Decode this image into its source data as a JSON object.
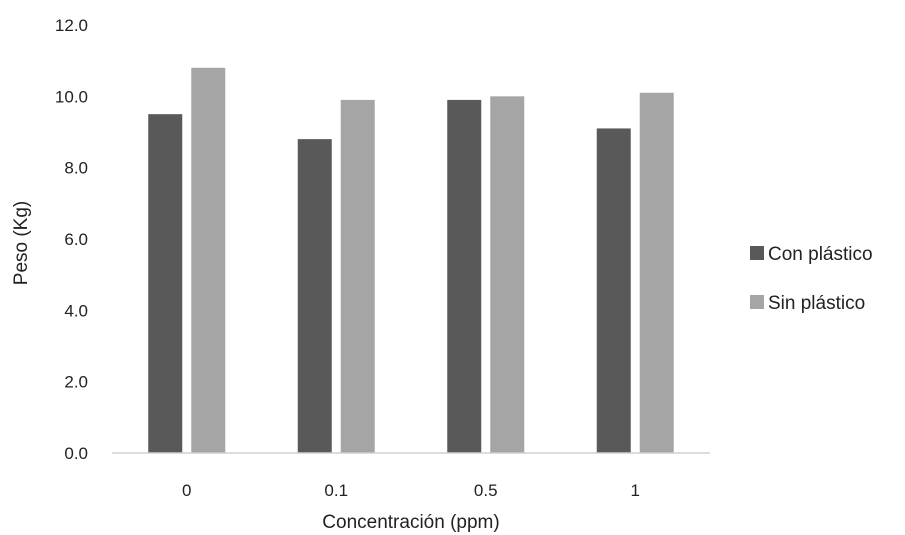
{
  "chart_data": {
    "type": "bar",
    "title": "",
    "xlabel": "Concentración (ppm)",
    "ylabel": "Peso (Kg)",
    "categories": [
      "0",
      "0.1",
      "0.5",
      "1"
    ],
    "series": [
      {
        "name": "Con plástico",
        "values": [
          9.5,
          8.8,
          9.9,
          9.1
        ],
        "color": "#595959"
      },
      {
        "name": "Sin plástico",
        "values": [
          10.8,
          9.9,
          10.0,
          10.1
        ],
        "color": "#a5a5a5"
      }
    ],
    "ylim": [
      0,
      12
    ],
    "yticks": [
      "0.0",
      "2.0",
      "4.0",
      "6.0",
      "8.0",
      "10.0",
      "12.0"
    ],
    "grid": false,
    "legend_position": "right"
  }
}
